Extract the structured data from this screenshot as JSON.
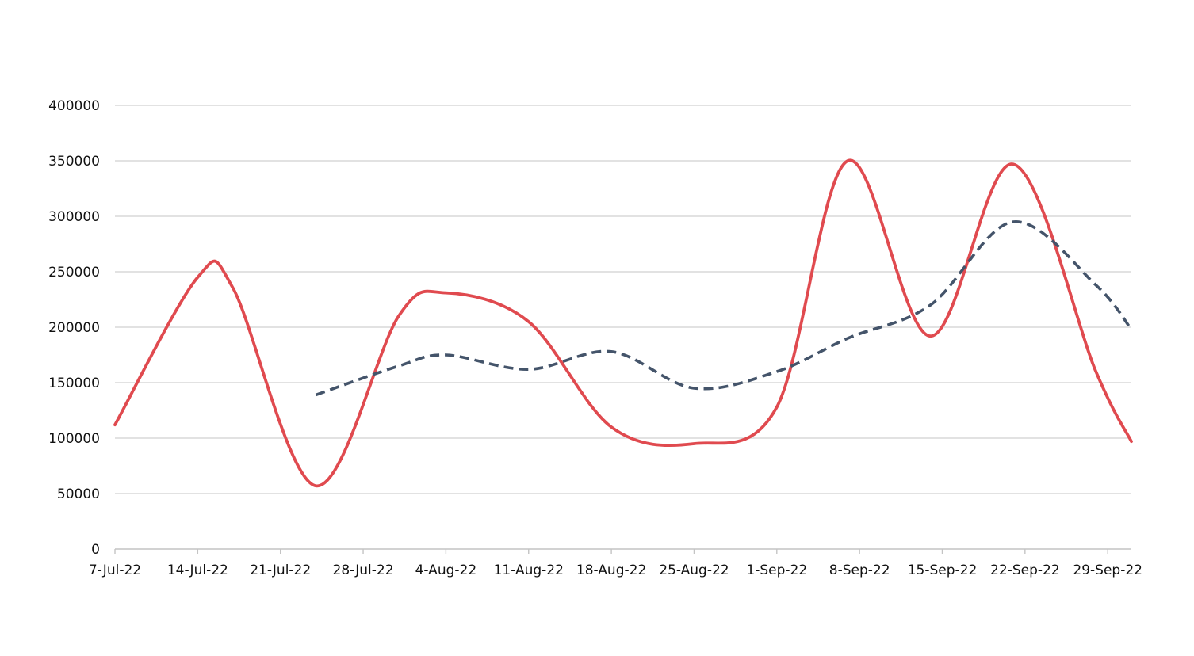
{
  "chart_data": {
    "type": "line",
    "title": "",
    "xlabel": "",
    "ylabel": "",
    "x_tick_labels": [
      "7-Jul-22",
      "14-Jul-22",
      "21-Jul-22",
      "28-Jul-22",
      "4-Aug-22",
      "11-Aug-22",
      "18-Aug-22",
      "25-Aug-22",
      "1-Sep-22",
      "8-Sep-22",
      "15-Sep-22",
      "22-Sep-22",
      "29-Sep-22"
    ],
    "x_range": [
      "2022-07-07",
      "2022-10-01"
    ],
    "ylim": [
      0,
      400000
    ],
    "y_ticks": [
      0,
      50000,
      100000,
      150000,
      200000,
      250000,
      300000,
      350000,
      400000
    ],
    "y_tick_labels": [
      "0",
      "50000",
      "100000",
      "150000",
      "200000",
      "250000",
      "300000",
      "350000",
      "400000"
    ],
    "grid": "horizontal",
    "legend": "none",
    "series": [
      {
        "color": "#e04a4f",
        "style": "solid",
        "smooth": true,
        "points": [
          {
            "x": "2022-07-07",
            "y": 112000
          },
          {
            "x": "2022-07-14",
            "y": 245000
          },
          {
            "x": "2022-07-17",
            "y": 235000
          },
          {
            "x": "2022-07-24",
            "y": 57000
          },
          {
            "x": "2022-07-31",
            "y": 210000
          },
          {
            "x": "2022-08-04",
            "y": 231000
          },
          {
            "x": "2022-08-11",
            "y": 205000
          },
          {
            "x": "2022-08-18",
            "y": 110000
          },
          {
            "x": "2022-08-25",
            "y": 95000
          },
          {
            "x": "2022-09-01",
            "y": 128000
          },
          {
            "x": "2022-09-07",
            "y": 350000
          },
          {
            "x": "2022-09-14",
            "y": 192000
          },
          {
            "x": "2022-09-21",
            "y": 347000
          },
          {
            "x": "2022-09-28",
            "y": 160000
          },
          {
            "x": "2022-10-01",
            "y": 97000
          }
        ]
      },
      {
        "color": "#44546a",
        "style": "dashed",
        "smooth": true,
        "points": [
          {
            "x": "2022-07-24",
            "y": 139000
          },
          {
            "x": "2022-07-31",
            "y": 165000
          },
          {
            "x": "2022-08-04",
            "y": 175000
          },
          {
            "x": "2022-08-11",
            "y": 162000
          },
          {
            "x": "2022-08-18",
            "y": 178000
          },
          {
            "x": "2022-08-25",
            "y": 145000
          },
          {
            "x": "2022-09-01",
            "y": 160000
          },
          {
            "x": "2022-09-07",
            "y": 190000
          },
          {
            "x": "2022-09-14",
            "y": 220000
          },
          {
            "x": "2022-09-21",
            "y": 295000
          },
          {
            "x": "2022-09-28",
            "y": 238000
          },
          {
            "x": "2022-10-01",
            "y": 198000
          }
        ]
      }
    ]
  }
}
